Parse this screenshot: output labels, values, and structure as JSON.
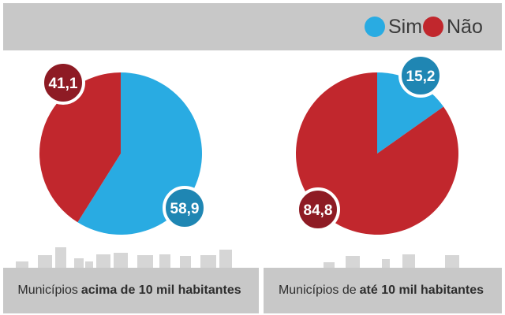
{
  "legend": {
    "sim_label": "Sim",
    "nao_label": "Não",
    "sim_color": "#29abe2",
    "nao_color": "#c1272d"
  },
  "chart_data": [
    {
      "type": "pie",
      "series_names": [
        "Sim",
        "Não"
      ],
      "values": [
        58.9,
        41.1
      ],
      "labels": [
        "58,9",
        "41,1"
      ],
      "caption_prefix": "Municípios",
      "caption_bold": "acima de 10 mil habitantes",
      "caption_suffix": ""
    },
    {
      "type": "pie",
      "series_names": [
        "Sim",
        "Não"
      ],
      "values": [
        15.2,
        84.8
      ],
      "labels": [
        "15,2",
        "84,8"
      ],
      "caption_prefix": "Municípios de",
      "caption_bold": "até 10 mil habitantes",
      "caption_suffix": ""
    }
  ]
}
